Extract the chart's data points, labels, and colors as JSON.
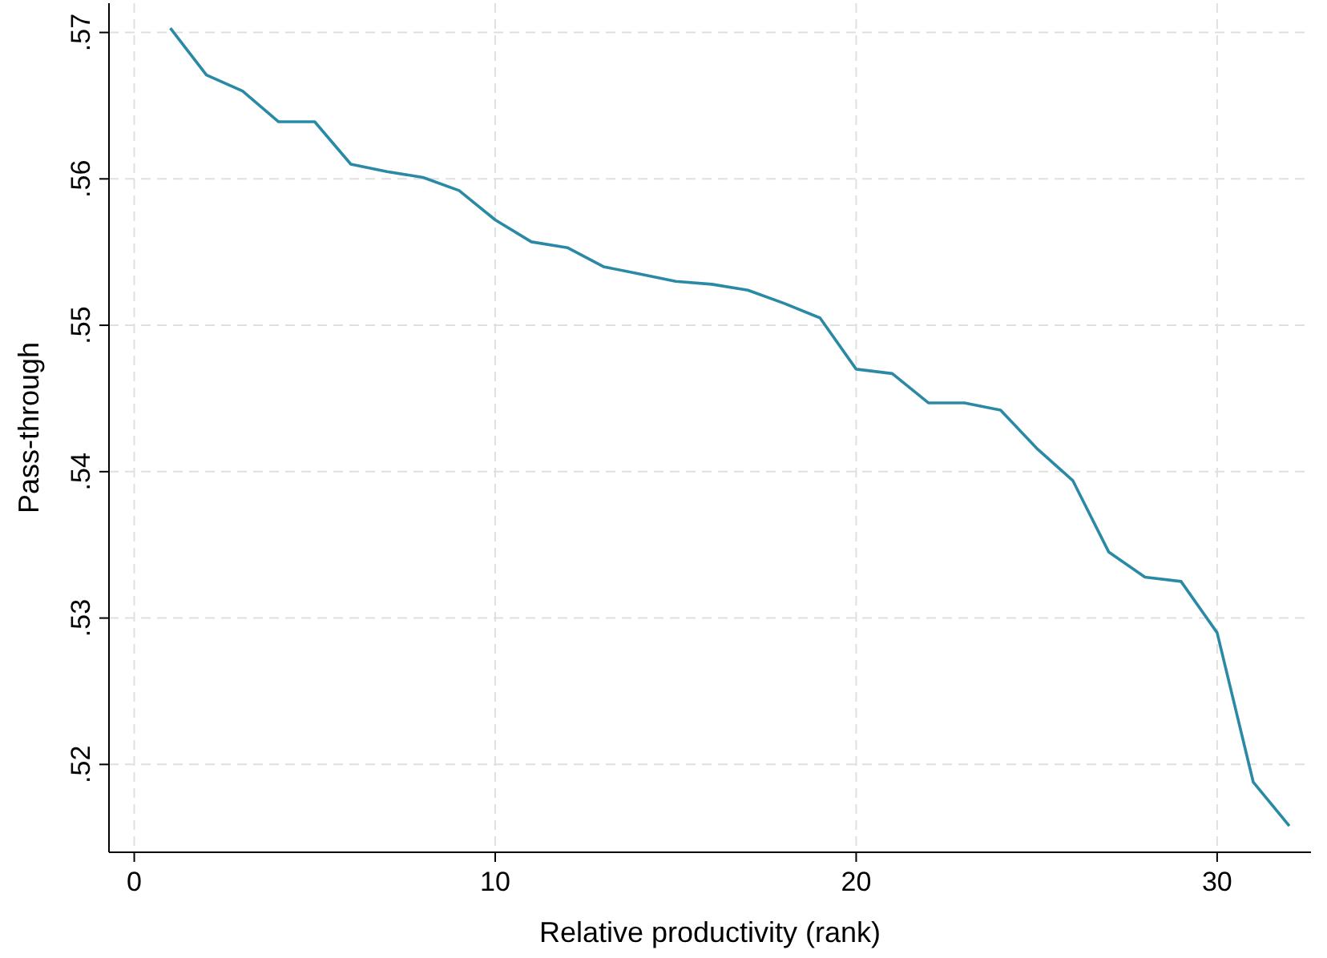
{
  "chart_data": {
    "type": "line",
    "xlabel": "Relative productivity (rank)",
    "ylabel": "Pass-through",
    "x": [
      1,
      2,
      3,
      4,
      5,
      6,
      7,
      8,
      9,
      10,
      11,
      12,
      13,
      14,
      15,
      16,
      17,
      18,
      19,
      20,
      21,
      22,
      23,
      24,
      25,
      26,
      27,
      28,
      29,
      30,
      31,
      32
    ],
    "series": [
      {
        "color": "#2a8aa6",
        "values": [
          0.5703,
          0.5671,
          0.566,
          0.5639,
          0.5639,
          0.561,
          0.5605,
          0.5601,
          0.5592,
          0.5572,
          0.5557,
          0.5553,
          0.554,
          0.5535,
          0.553,
          0.5528,
          0.5524,
          0.5515,
          0.5505,
          0.547,
          0.5467,
          0.5447,
          0.5447,
          0.5442,
          0.5416,
          0.5394,
          0.5345,
          0.5328,
          0.5325,
          0.529,
          0.5188,
          0.5158
        ]
      }
    ],
    "xlim": [
      -0.7,
      32.6
    ],
    "xticks": [
      0,
      10,
      20,
      30
    ],
    "ylim": [
      0.514,
      0.572
    ],
    "yticks": [
      {
        "value": 0.52,
        "label": ".52"
      },
      {
        "value": 0.53,
        "label": ".53"
      },
      {
        "value": 0.54,
        "label": ".54"
      },
      {
        "value": 0.55,
        "label": ".55"
      },
      {
        "value": 0.56,
        "label": ".56"
      },
      {
        "value": 0.57,
        "label": ".57"
      }
    ],
    "grid": true,
    "line_style": "solid",
    "marker": "none"
  }
}
